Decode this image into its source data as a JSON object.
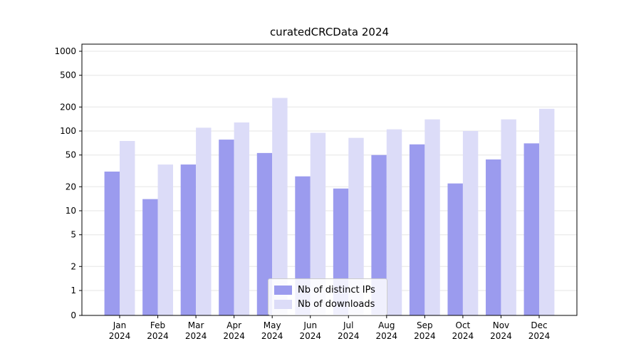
{
  "chart_data": {
    "type": "bar",
    "title": "curatedCRCData 2024",
    "categories": [
      "Jan",
      "Feb",
      "Mar",
      "Apr",
      "May",
      "Jun",
      "Jul",
      "Aug",
      "Sep",
      "Oct",
      "Nov",
      "Dec"
    ],
    "year_label": "2024",
    "series": [
      {
        "name": "Nb of distinct IPs",
        "color": "#9b9bee",
        "values": [
          31,
          14,
          38,
          78,
          53,
          27,
          19,
          50,
          68,
          22,
          44,
          70
        ]
      },
      {
        "name": "Nb of downloads",
        "color": "#dcdcf8",
        "values": [
          75,
          38,
          110,
          128,
          260,
          95,
          82,
          105,
          140,
          100,
          140,
          190
        ]
      }
    ],
    "y_ticks": [
      0,
      1,
      2,
      5,
      10,
      20,
      50,
      100,
      200,
      500,
      1000
    ],
    "y_scale": "symlog",
    "ylim": [
      0,
      1200
    ],
    "xlabel": "",
    "ylabel": "",
    "grid": true,
    "grid_color": "#e6e6e6",
    "legend_position": "lower center",
    "axis_color": "#000000",
    "background": "#ffffff"
  }
}
